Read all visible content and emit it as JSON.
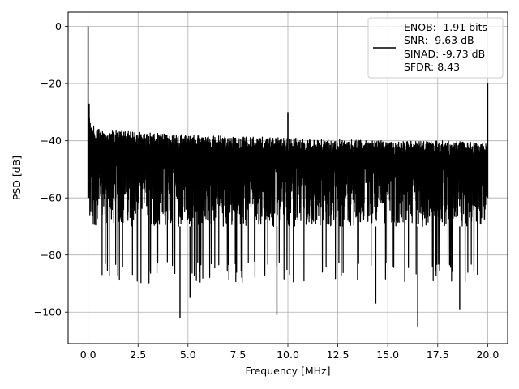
{
  "chart_data": {
    "type": "line",
    "xlabel": "Frequency [MHz]",
    "ylabel": "PSD [dB]",
    "xlim": [
      -1.0,
      21.0
    ],
    "ylim": [
      -111,
      5
    ],
    "xticks": [
      0.0,
      2.5,
      5.0,
      7.5,
      10.0,
      12.5,
      15.0,
      17.5,
      20.0
    ],
    "xtick_labels": [
      "0.0",
      "2.5",
      "5.0",
      "7.5",
      "10.0",
      "12.5",
      "15.0",
      "17.5",
      "20.0"
    ],
    "yticks": [
      0,
      -20,
      -40,
      -60,
      -80,
      -100
    ],
    "ytick_labels": [
      "0",
      "−20",
      "−40",
      "−60",
      "−80",
      "−100"
    ],
    "grid": true,
    "legend": {
      "placement": "upper-right",
      "entries": [
        {
          "text": "ENOB: -1.91 bits",
          "has_line": false
        },
        {
          "text": "SNR: -9.63 dB",
          "has_line": true
        },
        {
          "text": "SINAD: -9.73 dB",
          "has_line": false
        },
        {
          "text": "SFDR: 8.43",
          "has_line": false
        }
      ]
    },
    "series": [
      {
        "color": "#000000",
        "x_range": [
          0.0,
          20.0
        ],
        "noise_envelope": {
          "upper_x": [
            0.0,
            0.15,
            0.5,
            2.5,
            5.0,
            10.0,
            15.0,
            18.0,
            20.0
          ],
          "upper_y": [
            -28,
            -34,
            -36,
            -37,
            -38,
            -39,
            -40,
            -40,
            -41
          ],
          "lower_typ": -78,
          "lower_dip_min": -105
        },
        "peaks": [
          {
            "x": 0.0,
            "y": 0
          },
          {
            "x": 0.05,
            "y": -27
          },
          {
            "x": 10.0,
            "y": -30
          },
          {
            "x": 20.0,
            "y": -20
          }
        ],
        "dips": [
          {
            "x": 4.6,
            "y": -102
          },
          {
            "x": 5.1,
            "y": -95
          },
          {
            "x": 9.45,
            "y": -101
          },
          {
            "x": 14.4,
            "y": -97
          },
          {
            "x": 16.5,
            "y": -105
          },
          {
            "x": 18.6,
            "y": -99
          }
        ]
      }
    ]
  }
}
